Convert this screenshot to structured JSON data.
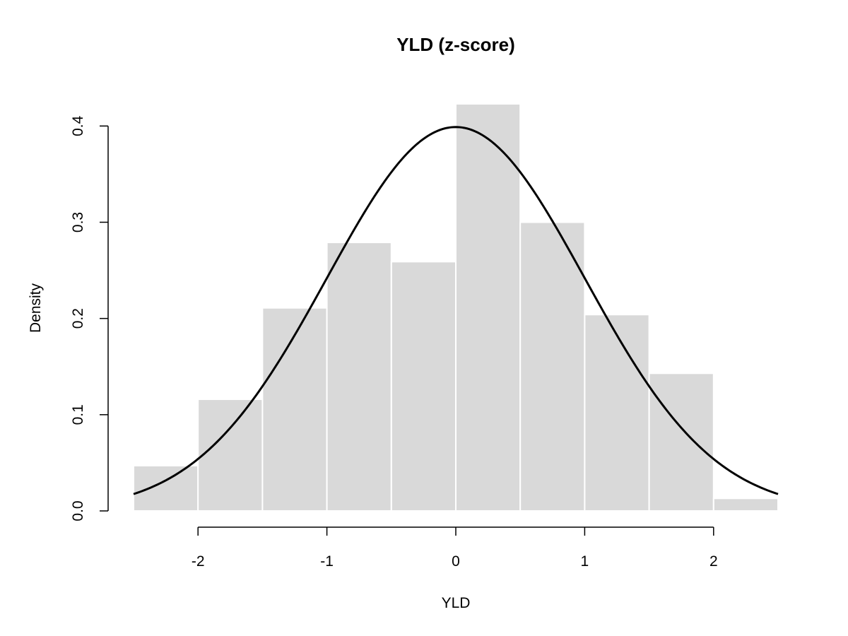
{
  "chart_data": {
    "type": "bar",
    "title": "YLD (z-score)",
    "xlabel": "YLD",
    "ylabel": "Density",
    "bins": [
      {
        "x0": -2.5,
        "x1": -2.0,
        "density": 0.047
      },
      {
        "x0": -2.0,
        "x1": -1.5,
        "density": 0.116
      },
      {
        "x0": -1.5,
        "x1": -1.0,
        "density": 0.211
      },
      {
        "x0": -1.0,
        "x1": -0.5,
        "density": 0.279
      },
      {
        "x0": -0.5,
        "x1": 0.0,
        "density": 0.259
      },
      {
        "x0": 0.0,
        "x1": 0.5,
        "density": 0.423
      },
      {
        "x0": 0.5,
        "x1": 1.0,
        "density": 0.3
      },
      {
        "x0": 1.0,
        "x1": 1.5,
        "density": 0.204
      },
      {
        "x0": 1.5,
        "x1": 2.0,
        "density": 0.143
      },
      {
        "x0": 2.0,
        "x1": 2.5,
        "density": 0.013
      }
    ],
    "overlay_curve": {
      "type": "normal-density",
      "mean": 0,
      "sd": 1,
      "x_range": [
        -2.5,
        2.5
      ]
    },
    "xlim": [
      -2.5,
      2.5
    ],
    "ylim": [
      0,
      0.423
    ],
    "x_ticks": [
      "-2",
      "-1",
      "0",
      "1",
      "2"
    ],
    "y_ticks": [
      "0.0",
      "0.1",
      "0.2",
      "0.3",
      "0.4"
    ],
    "grid": false,
    "colors": {
      "bar_fill": "#d9d9d9",
      "bar_border": "#ffffff",
      "curve": "#000000"
    }
  }
}
